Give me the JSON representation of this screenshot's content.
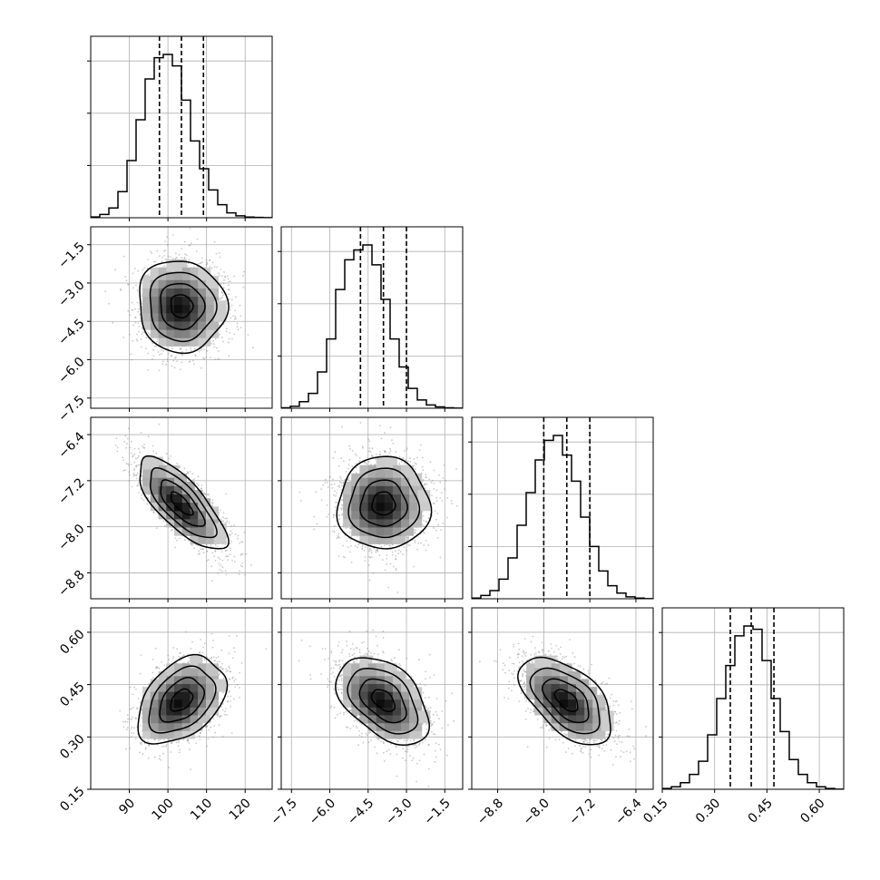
{
  "chart_data": {
    "type": "corner",
    "parameters": 4,
    "axes": [
      {
        "range": [
          80,
          127
        ],
        "ticks": [
          90,
          100,
          110,
          120
        ],
        "tick_labels": [
          "90",
          "100",
          "110",
          "120"
        ],
        "median": 103.5,
        "q16": 97.8,
        "q84": 109.2
      },
      {
        "range": [
          -7.9,
          -0.8
        ],
        "ticks": [
          -7.5,
          -6.0,
          -4.5,
          -3.0,
          -1.5
        ],
        "tick_labels": [
          "−7.5",
          "−6.0",
          "−4.5",
          "−3.0",
          "−1.5"
        ],
        "median": -3.9,
        "q16": -4.8,
        "q84": -3.0
      },
      {
        "range": [
          -9.25,
          -6.1
        ],
        "ticks": [
          -8.8,
          -8.0,
          -7.2,
          -6.4
        ],
        "tick_labels": [
          "−8.8",
          "−8.0",
          "−7.2",
          "−6.4"
        ],
        "median": -7.6,
        "q16": -8.0,
        "q84": -7.2
      },
      {
        "range": [
          0.15,
          0.67
        ],
        "ticks": [
          0.15,
          0.3,
          0.45,
          0.6
        ],
        "tick_labels": [
          "0.15",
          "0.30",
          "0.45",
          "0.60"
        ],
        "median": 0.405,
        "q16": 0.345,
        "q84": 0.47
      }
    ],
    "histograms": [
      {
        "range": [
          80,
          127
        ],
        "bins": 20,
        "values": [
          0.005,
          0.02,
          0.06,
          0.16,
          0.35,
          0.6,
          0.85,
          0.98,
          1.0,
          0.93,
          0.72,
          0.47,
          0.3,
          0.17,
          0.08,
          0.03,
          0.012,
          0.004,
          0.002,
          0.001
        ]
      },
      {
        "range": [
          -7.9,
          -0.8
        ],
        "bins": 20,
        "values": [
          0.003,
          0.012,
          0.04,
          0.09,
          0.22,
          0.42,
          0.72,
          0.9,
          0.96,
          0.99,
          0.87,
          0.66,
          0.42,
          0.25,
          0.12,
          0.05,
          0.02,
          0.008,
          0.003,
          0.001
        ]
      },
      {
        "range": [
          -9.25,
          -6.1
        ],
        "bins": 20,
        "values": [
          0.004,
          0.02,
          0.05,
          0.12,
          0.25,
          0.45,
          0.65,
          0.85,
          0.97,
          1.0,
          0.88,
          0.72,
          0.5,
          0.32,
          0.17,
          0.08,
          0.035,
          0.012,
          0.004,
          0.001
        ]
      },
      {
        "range": [
          0.15,
          0.67
        ],
        "bins": 20,
        "values": [
          0.005,
          0.015,
          0.04,
          0.09,
          0.17,
          0.33,
          0.55,
          0.75,
          0.93,
          0.99,
          0.97,
          0.78,
          0.55,
          0.35,
          0.18,
          0.09,
          0.04,
          0.015,
          0.005,
          0.001
        ]
      }
    ],
    "correlations": {
      "1,0": -0.05,
      "2,0": -0.75,
      "2,1": 0.0,
      "3,0": 0.4,
      "3,1": -0.45,
      "3,2": -0.55
    },
    "grid": true,
    "colors": {
      "line": "#000000",
      "scatter": "#8a8a8a",
      "grid": "#b0b0b0",
      "frame": "#000000"
    }
  }
}
